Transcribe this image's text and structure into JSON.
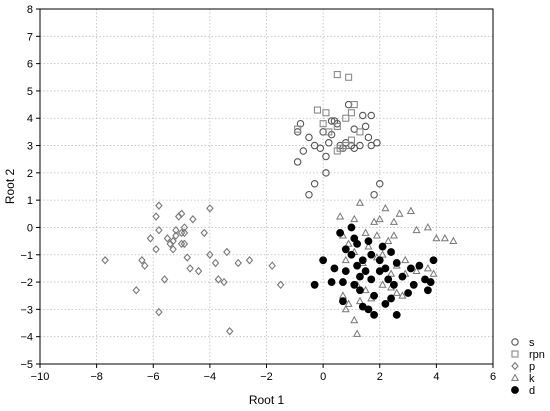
{
  "chart_data": {
    "type": "scatter",
    "title": "",
    "xlabel": "Root 1",
    "ylabel": "Root 2",
    "xlim": [
      -10,
      6
    ],
    "ylim": [
      -5,
      8
    ],
    "xticks": [
      -10,
      -8,
      -6,
      -4,
      -2,
      0,
      2,
      4,
      6
    ],
    "yticks": [
      -5,
      -4,
      -3,
      -2,
      -1,
      0,
      1,
      2,
      3,
      4,
      5,
      6,
      7,
      8
    ],
    "grid": true,
    "legend_position": "bottom-right",
    "series": [
      {
        "name": "s",
        "marker": "open-circle",
        "color": "#555555",
        "points": [
          [
            -0.9,
            2.4
          ],
          [
            -0.7,
            2.8
          ],
          [
            -0.5,
            3.3
          ],
          [
            -0.9,
            3.5
          ],
          [
            -0.8,
            3.8
          ],
          [
            -0.3,
            3.0
          ],
          [
            -0.3,
            1.6
          ],
          [
            -0.1,
            2.9
          ],
          [
            0.1,
            2.0
          ],
          [
            0.1,
            2.6
          ],
          [
            0.2,
            3.1
          ],
          [
            0.3,
            3.9
          ],
          [
            0.3,
            3.4
          ],
          [
            0.5,
            3.8
          ],
          [
            0.6,
            3.0
          ],
          [
            0.7,
            2.9
          ],
          [
            0.9,
            4.5
          ],
          [
            1.1,
            3.6
          ],
          [
            1.1,
            2.9
          ],
          [
            1.3,
            3.0
          ],
          [
            1.5,
            3.7
          ],
          [
            1.6,
            3.3
          ],
          [
            1.7,
            3.0
          ],
          [
            1.9,
            3.1
          ],
          [
            1.7,
            4.1
          ],
          [
            2.0,
            1.6
          ],
          [
            1.8,
            1.2
          ],
          [
            -0.5,
            1.2
          ],
          [
            0.4,
            3.9
          ],
          [
            0.8,
            3.1
          ],
          [
            0.0,
            3.5
          ],
          [
            1.4,
            4.1
          ],
          [
            1.0,
            3.0
          ]
        ]
      },
      {
        "name": "rpn",
        "marker": "open-square",
        "color": "#8a8a8a",
        "points": [
          [
            0.5,
            5.6
          ],
          [
            0.9,
            5.5
          ],
          [
            -0.2,
            4.3
          ],
          [
            0.1,
            4.2
          ],
          [
            0.2,
            3.5
          ],
          [
            0.5,
            3.7
          ],
          [
            0.6,
            2.9
          ],
          [
            0.8,
            3.0
          ],
          [
            0.8,
            4.0
          ],
          [
            1.0,
            4.2
          ],
          [
            1.1,
            4.5
          ],
          [
            1.3,
            3.5
          ],
          [
            1.0,
            3.2
          ],
          [
            0.0,
            3.8
          ],
          [
            0.5,
            2.8
          ],
          [
            -0.9,
            3.6
          ]
        ]
      },
      {
        "name": "p",
        "marker": "open-diamond",
        "color": "#777777",
        "points": [
          [
            -7.7,
            -1.2
          ],
          [
            -6.6,
            -2.3
          ],
          [
            -6.3,
            -1.4
          ],
          [
            -6.4,
            -1.2
          ],
          [
            -5.9,
            -0.8
          ],
          [
            -5.8,
            0.8
          ],
          [
            -5.8,
            -3.1
          ],
          [
            -5.6,
            -1.9
          ],
          [
            -5.5,
            -0.4
          ],
          [
            -5.4,
            -0.6
          ],
          [
            -5.3,
            -0.8
          ],
          [
            -5.2,
            -0.1
          ],
          [
            -5.1,
            0.4
          ],
          [
            -5.0,
            -0.6
          ],
          [
            -4.9,
            -0.2
          ],
          [
            -4.9,
            0.0
          ],
          [
            -4.8,
            -1.1
          ],
          [
            -4.7,
            -1.5
          ],
          [
            -4.6,
            0.3
          ],
          [
            -4.4,
            -1.6
          ],
          [
            -4.2,
            -0.2
          ],
          [
            -4.0,
            -1.0
          ],
          [
            -3.8,
            -1.3
          ],
          [
            -3.5,
            -2.0
          ],
          [
            -3.4,
            -0.9
          ],
          [
            -3.3,
            -3.8
          ],
          [
            -3.0,
            -1.3
          ],
          [
            -2.6,
            -1.2
          ],
          [
            -1.8,
            -1.4
          ],
          [
            -1.5,
            -2.1
          ],
          [
            -5.8,
            -0.1
          ],
          [
            -5.3,
            -0.5
          ],
          [
            -5.2,
            -0.3
          ],
          [
            -5.0,
            -0.2
          ],
          [
            -5.9,
            0.4
          ],
          [
            -6.1,
            -0.4
          ],
          [
            -4.9,
            -0.6
          ],
          [
            -4.0,
            0.7
          ],
          [
            -3.7,
            -1.9
          ],
          [
            -5.0,
            0.5
          ]
        ]
      },
      {
        "name": "k",
        "marker": "open-triangle",
        "color": "#777777",
        "points": [
          [
            0.6,
            0.4
          ],
          [
            1.1,
            0.3
          ],
          [
            1.3,
            0.9
          ],
          [
            1.8,
            0.2
          ],
          [
            2.0,
            0.3
          ],
          [
            2.2,
            0.7
          ],
          [
            2.5,
            0.2
          ],
          [
            2.7,
            0.5
          ],
          [
            3.1,
            0.6
          ],
          [
            3.3,
            -0.1
          ],
          [
            3.7,
            0.0
          ],
          [
            4.0,
            -0.4
          ],
          [
            4.3,
            -0.4
          ],
          [
            4.6,
            -0.5
          ],
          [
            2.9,
            -1.2
          ],
          [
            3.3,
            -1.6
          ],
          [
            3.7,
            -1.5
          ],
          [
            3.9,
            -1.7
          ],
          [
            0.7,
            -0.3
          ],
          [
            0.9,
            -0.6
          ],
          [
            0.8,
            -1.2
          ],
          [
            1.1,
            -0.9
          ],
          [
            1.4,
            -1.3
          ],
          [
            1.6,
            -0.7
          ],
          [
            1.9,
            -1.1
          ],
          [
            2.1,
            -1.0
          ],
          [
            2.4,
            -1.7
          ],
          [
            2.6,
            -1.4
          ],
          [
            2.9,
            -1.7
          ],
          [
            1.2,
            -2.1
          ],
          [
            1.5,
            -2.3
          ],
          [
            1.7,
            -2.6
          ],
          [
            0.9,
            -2.8
          ],
          [
            1.3,
            -2.7
          ],
          [
            0.7,
            -2.5
          ],
          [
            0.8,
            -3.0
          ],
          [
            1.1,
            -3.4
          ],
          [
            1.2,
            -3.9
          ],
          [
            2.1,
            -2.1
          ],
          [
            2.4,
            -2.2
          ],
          [
            2.6,
            -2.4
          ],
          [
            2.8,
            -2.5
          ],
          [
            1.5,
            -0.2
          ],
          [
            1.9,
            -0.3
          ],
          [
            2.3,
            -0.5
          ],
          [
            2.5,
            -0.3
          ]
        ]
      },
      {
        "name": "d",
        "marker": "filled-circle",
        "color": "#000000",
        "points": [
          [
            -0.3,
            -2.1
          ],
          [
            0.0,
            -1.2
          ],
          [
            0.3,
            -2.0
          ],
          [
            0.4,
            -1.5
          ],
          [
            0.6,
            -0.2
          ],
          [
            0.7,
            -2.0
          ],
          [
            0.7,
            -2.7
          ],
          [
            0.8,
            -1.6
          ],
          [
            0.8,
            -0.8
          ],
          [
            1.0,
            -1.0
          ],
          [
            1.1,
            -2.1
          ],
          [
            1.2,
            -0.6
          ],
          [
            1.2,
            -1.4
          ],
          [
            1.3,
            -1.8
          ],
          [
            1.3,
            -2.3
          ],
          [
            1.4,
            -2.9
          ],
          [
            1.5,
            -1.6
          ],
          [
            1.6,
            -3.0
          ],
          [
            1.7,
            -1.9
          ],
          [
            1.7,
            -1.0
          ],
          [
            1.8,
            -2.5
          ],
          [
            1.8,
            -3.2
          ],
          [
            2.0,
            -1.2
          ],
          [
            2.1,
            -0.7
          ],
          [
            2.2,
            -1.5
          ],
          [
            2.2,
            -2.8
          ],
          [
            2.3,
            -1.9
          ],
          [
            2.4,
            -0.9
          ],
          [
            2.5,
            -2.1
          ],
          [
            2.6,
            -1.3
          ],
          [
            2.6,
            -3.2
          ],
          [
            2.8,
            -1.8
          ],
          [
            3.0,
            -2.4
          ],
          [
            3.1,
            -1.5
          ],
          [
            3.2,
            -2.1
          ],
          [
            3.4,
            -1.4
          ],
          [
            3.6,
            -1.9
          ],
          [
            3.7,
            -2.3
          ],
          [
            3.9,
            -1.2
          ],
          [
            3.8,
            -2.0
          ],
          [
            1.1,
            -0.4
          ],
          [
            1.0,
            0.0
          ],
          [
            1.6,
            -0.5
          ],
          [
            2.0,
            -1.6
          ],
          [
            2.4,
            -2.6
          ],
          [
            1.4,
            -1.2
          ]
        ]
      }
    ]
  }
}
